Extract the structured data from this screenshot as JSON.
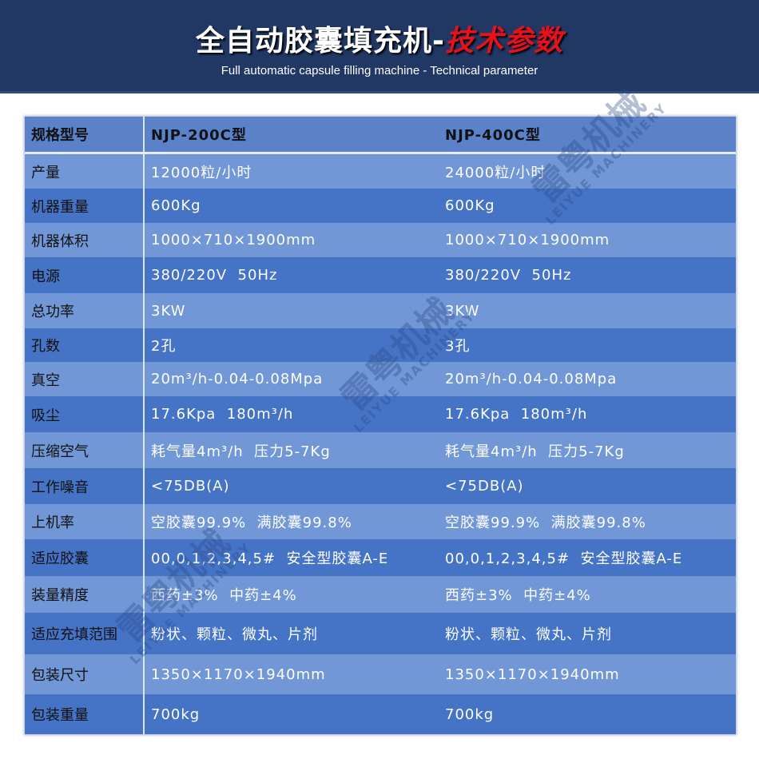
{
  "header": {
    "title_white": "全自动胶囊填充机-",
    "title_red": "技术参数",
    "subtitle": "Full automatic capsule filling machine - Technical parameter"
  },
  "watermark": {
    "cn": "雷粤机械",
    "en": "LEIYUE MACHINERY"
  },
  "table": {
    "headers": [
      "规格型号",
      "NJP-200C型",
      "NJP-400C型"
    ],
    "rows": [
      [
        "产量",
        "12000粒/小时",
        "24000粒/小时"
      ],
      [
        "机器重量",
        "600Kg",
        "600Kg"
      ],
      [
        "机器体积",
        "1000×710×1900mm",
        "1000×710×1900mm"
      ],
      [
        "电源",
        "380/220V  50Hz",
        "380/220V  50Hz"
      ],
      [
        "总功率",
        "3KW",
        "3KW"
      ],
      [
        "孔数",
        "2孔",
        "3孔"
      ],
      [
        "真空",
        "20m³/h-0.04-0.08Mpa",
        "20m³/h-0.04-0.08Mpa"
      ],
      [
        "吸尘",
        "17.6Kpa  180m³/h",
        "17.6Kpa  180m³/h"
      ],
      [
        "压缩空气",
        "耗气量4m³/h  压力5-7Kg",
        "耗气量4m³/h  压力5-7Kg"
      ],
      [
        "工作噪音",
        "<75DB(A)",
        "<75DB(A)"
      ],
      [
        "上机率",
        "空胶囊99.9%  满胶囊99.8%",
        "空胶囊99.9%  满胶囊99.8%"
      ],
      [
        "适应胶囊",
        "00,0,1,2,3,4,5#  安全型胶囊A-E",
        "00,0,1,2,3,4,5#  安全型胶囊A-E"
      ],
      [
        "装量精度",
        "西药±3%  中药±4%",
        "西药±3%  中药±4%"
      ],
      [
        "适应充填范围",
        "粉状、颗粒、微丸、片剂",
        "粉状、颗粒、微丸、片剂"
      ],
      [
        "包装尺寸",
        "1350×1170×1940mm",
        "1350×1170×1940mm"
      ],
      [
        "包装重量",
        "700kg",
        "700kg"
      ]
    ]
  }
}
